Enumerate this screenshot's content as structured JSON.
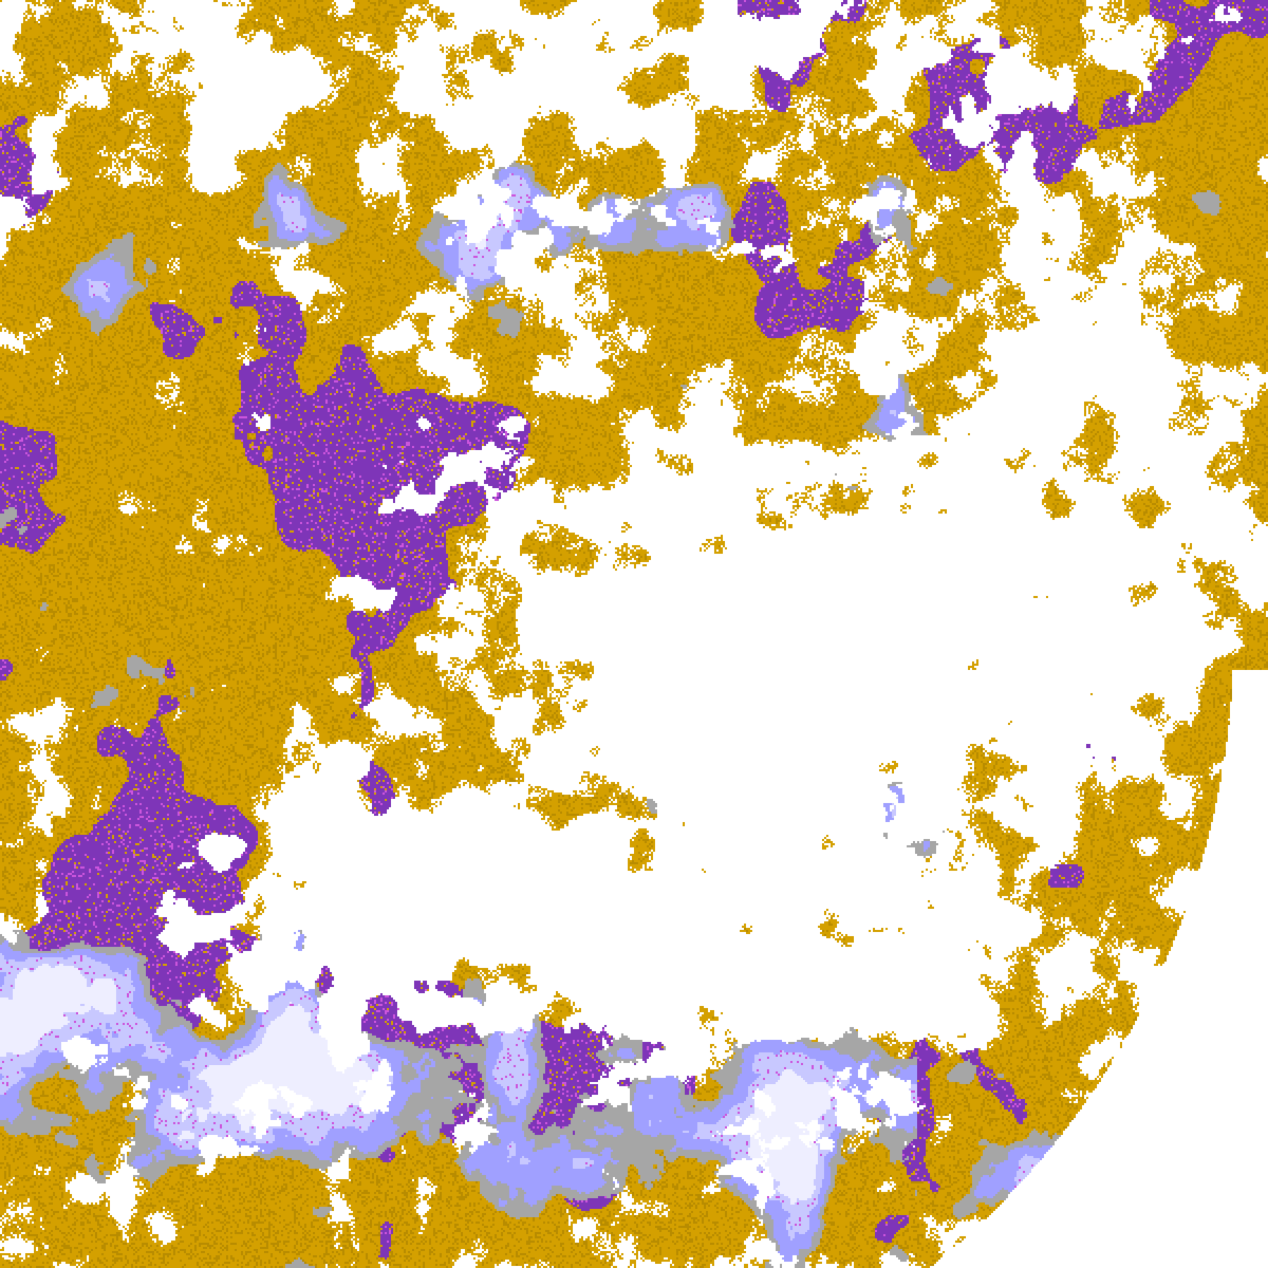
{
  "map": {
    "palette": {
      "clear": "#ffffff",
      "gold": "#d4a000",
      "gold_dark": "#b88c00",
      "purple": "#7e35b8",
      "magenta": "#cc55dd",
      "gray": "#a6a6a6",
      "lavender": "#a0a0ff",
      "pale_lavender": "#c8c8ff",
      "near_white": "#eeeeff",
      "off_disk": "#ffffff"
    }
  }
}
